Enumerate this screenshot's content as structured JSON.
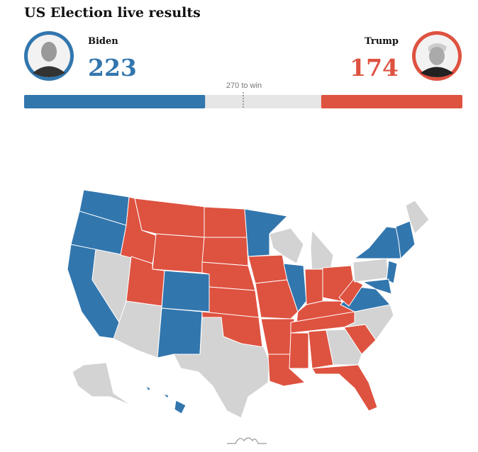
{
  "header": {
    "title": "US Election live results"
  },
  "candidates": [
    {
      "name": "Biden",
      "electoral_votes": 223,
      "color": "#3276ae"
    },
    {
      "name": "Trump",
      "electoral_votes": 174,
      "color": "#de5240"
    }
  ],
  "win_threshold": {
    "value": 270,
    "label": "270 to win"
  }
}
